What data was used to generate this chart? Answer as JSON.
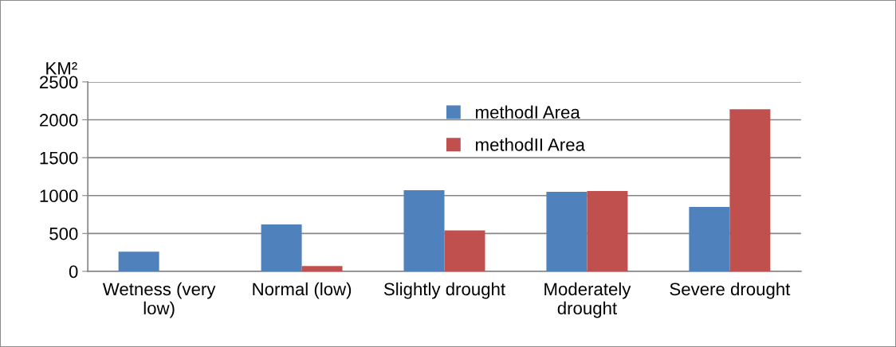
{
  "chart_data": {
    "type": "bar",
    "ylabel": "KM²",
    "categories": [
      "Wetness (very\nlow)",
      "Normal (low)",
      "Slightly drought",
      "Moderately\ndrought",
      "Severe drought"
    ],
    "series": [
      {
        "name": "methodI Area",
        "color": "#4f81bd",
        "values": [
          260,
          620,
          1070,
          1050,
          850
        ]
      },
      {
        "name": "methodII Area",
        "color": "#c0504d",
        "values": [
          0,
          70,
          540,
          1060,
          2140
        ]
      }
    ],
    "ylim": [
      0,
      2500
    ],
    "yticks": [
      0,
      500,
      1000,
      1500,
      2000,
      2500
    ],
    "grid": "y",
    "legend": "top"
  }
}
